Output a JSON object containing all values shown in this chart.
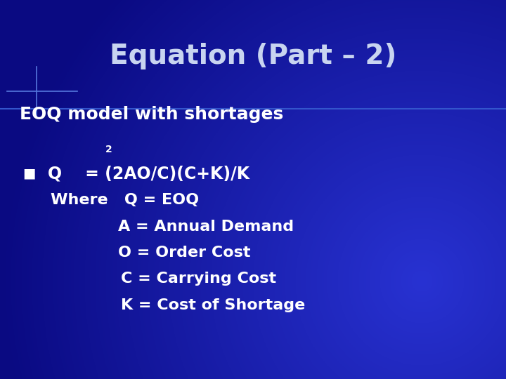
{
  "title": "Equation (Part – 2)",
  "subtitle": "EOQ model with shortages",
  "superscript": "2",
  "bullet": "■",
  "line1": "Q    = (2AO/C)(C+K)/K",
  "line2": "Where   Q = EOQ",
  "line3": "A = Annual Demand",
  "line4": "O = Order Cost",
  "line5": "C = Carrying Cost",
  "line6": "K = Cost of Shortage",
  "bg_color": "#0a0aaa",
  "bg_dark": "#000090",
  "title_color": "#c8d4f0",
  "text_color": "#ffffff",
  "crosshair_color": "#4466cc",
  "title_font_size": 28,
  "subtitle_font_size": 18,
  "body_font_size": 17,
  "super_font_size": 10
}
